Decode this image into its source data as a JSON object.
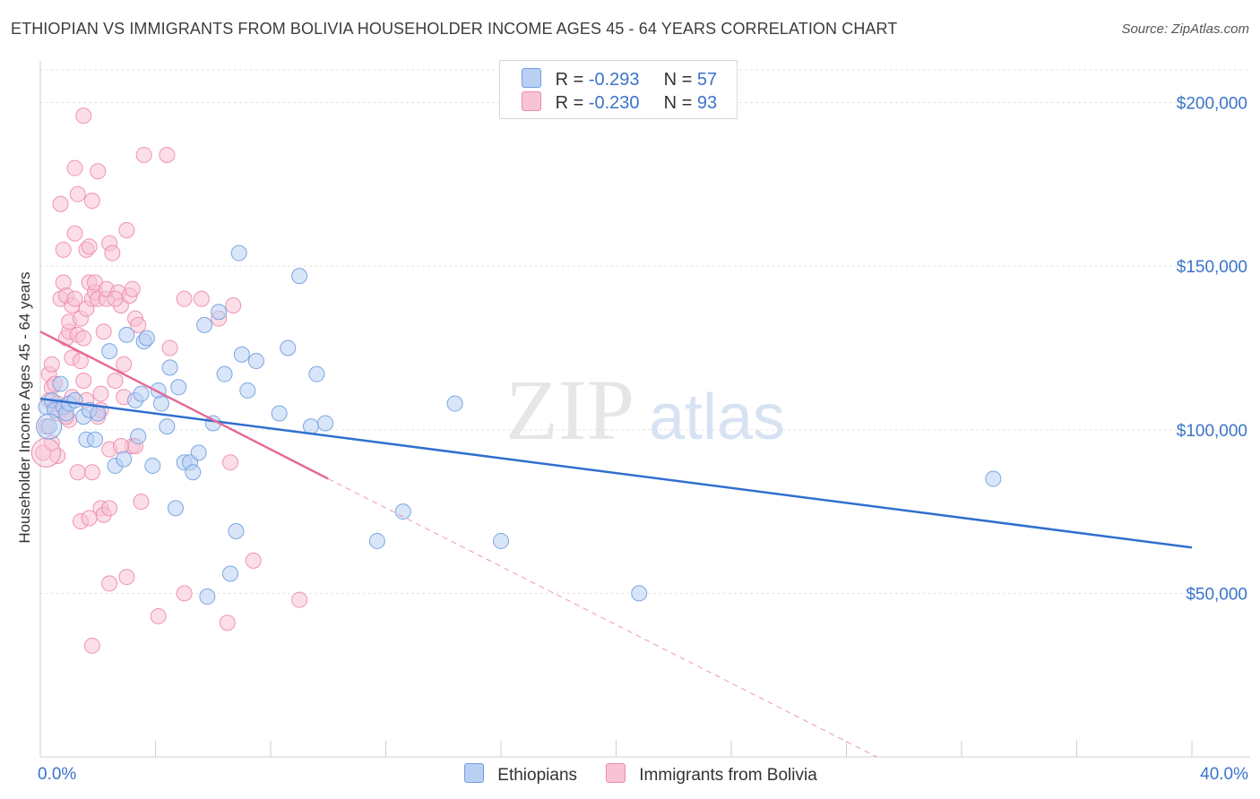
{
  "header": {
    "title": "ETHIOPIAN VS IMMIGRANTS FROM BOLIVIA HOUSEHOLDER INCOME AGES 45 - 64 YEARS CORRELATION CHART",
    "source": "Source: ZipAtlas.com"
  },
  "watermark": {
    "zip": "ZIP",
    "atlas": "atlas"
  },
  "legend": {
    "items": [
      {
        "r_label": "R =",
        "r_value": "-0.293",
        "n_label": "N =",
        "n_value": "57",
        "color": "#6f9ee0",
        "fill": "#b9d0f2"
      },
      {
        "r_label": "R =",
        "r_value": "-0.230",
        "n_label": "N =",
        "n_value": "93",
        "color": "#ee8aac",
        "fill": "#f8c3d5"
      }
    ]
  },
  "bottom_legend": {
    "items": [
      "Ethiopians",
      "Immigrants from Bolivia"
    ]
  },
  "chart_data": {
    "type": "scatter",
    "title": "ETHIOPIAN VS IMMIGRANTS FROM BOLIVIA HOUSEHOLDER INCOME AGES 45 - 64 YEARS CORRELATION CHART",
    "ylabel": "Householder Income Ages 45 - 64 years",
    "xlabel": "",
    "xlim": [
      0,
      40
    ],
    "ylim": [
      0,
      210000
    ],
    "x_tick_labels": [
      "0.0%",
      "40.0%"
    ],
    "y_ticks": [
      50000,
      100000,
      150000,
      200000
    ],
    "y_tick_labels": [
      "$50,000",
      "$100,000",
      "$150,000",
      "$200,000"
    ],
    "grid": true,
    "legend_position": "top-center",
    "series": [
      {
        "name": "Ethiopians",
        "color": "#6f9ee0",
        "fill": "#b9d0f2",
        "line_color": "#2f6fcf",
        "trend": {
          "x": [
            0,
            40
          ],
          "y": [
            109500,
            64000
          ]
        },
        "points": [
          [
            0.2,
            107000
          ],
          [
            0.4,
            109000
          ],
          [
            0.5,
            106000
          ],
          [
            0.7,
            114000
          ],
          [
            0.8,
            107000
          ],
          [
            0.9,
            105000
          ],
          [
            1.0,
            108000
          ],
          [
            1.2,
            109000
          ],
          [
            1.5,
            104000
          ],
          [
            1.7,
            106000
          ],
          [
            2.0,
            105000
          ],
          [
            1.6,
            97000
          ],
          [
            1.9,
            97000
          ],
          [
            2.4,
            124000
          ],
          [
            2.6,
            89000
          ],
          [
            2.9,
            91000
          ],
          [
            3.0,
            129000
          ],
          [
            3.3,
            109000
          ],
          [
            3.4,
            98000
          ],
          [
            3.6,
            127000
          ],
          [
            3.7,
            128000
          ],
          [
            3.9,
            89000
          ],
          [
            4.1,
            112000
          ],
          [
            4.2,
            108000
          ],
          [
            4.4,
            101000
          ],
          [
            4.5,
            119000
          ],
          [
            4.7,
            76000
          ],
          [
            4.8,
            113000
          ],
          [
            5.0,
            90000
          ],
          [
            5.2,
            90000
          ],
          [
            5.3,
            87000
          ],
          [
            5.5,
            93000
          ],
          [
            5.7,
            132000
          ],
          [
            5.8,
            49000
          ],
          [
            6.0,
            102000
          ],
          [
            6.2,
            136000
          ],
          [
            6.4,
            117000
          ],
          [
            6.6,
            56000
          ],
          [
            6.8,
            69000
          ],
          [
            7.0,
            123000
          ],
          [
            7.2,
            112000
          ],
          [
            7.5,
            121000
          ],
          [
            8.3,
            105000
          ],
          [
            8.6,
            125000
          ],
          [
            9.0,
            147000
          ],
          [
            9.4,
            101000
          ],
          [
            9.6,
            117000
          ],
          [
            9.9,
            102000
          ],
          [
            3.5,
            111000
          ],
          [
            6.9,
            154000
          ],
          [
            11.7,
            66000
          ],
          [
            12.6,
            75000
          ],
          [
            14.4,
            108000
          ],
          [
            16.0,
            66000
          ],
          [
            20.8,
            50000
          ],
          [
            33.1,
            85000
          ],
          [
            0.3,
            101000
          ]
        ]
      },
      {
        "name": "Immigrants from Bolivia",
        "color": "#ee8aac",
        "fill": "#f8c3d5",
        "line_color": "#e46b95",
        "trend": {
          "x": [
            0,
            10
          ],
          "y": [
            130000,
            85000
          ]
        },
        "trend_extension": {
          "x": [
            10,
            29.5
          ],
          "y": [
            85000,
            -2000
          ]
        },
        "points": [
          [
            0.1,
            93000
          ],
          [
            0.2,
            101000
          ],
          [
            0.3,
            109000
          ],
          [
            0.3,
            117000
          ],
          [
            0.4,
            120000
          ],
          [
            0.4,
            113000
          ],
          [
            0.5,
            107000
          ],
          [
            0.5,
            114000
          ],
          [
            0.6,
            92000
          ],
          [
            0.6,
            108000
          ],
          [
            0.7,
            169000
          ],
          [
            0.7,
            140000
          ],
          [
            0.8,
            155000
          ],
          [
            0.8,
            145000
          ],
          [
            0.9,
            128000
          ],
          [
            0.9,
            141000
          ],
          [
            1.0,
            130000
          ],
          [
            1.0,
            133000
          ],
          [
            1.1,
            138000
          ],
          [
            1.1,
            122000
          ],
          [
            1.2,
            180000
          ],
          [
            1.2,
            160000
          ],
          [
            1.3,
            172000
          ],
          [
            1.3,
            129000
          ],
          [
            1.4,
            134000
          ],
          [
            1.4,
            121000
          ],
          [
            1.5,
            115000
          ],
          [
            1.5,
            128000
          ],
          [
            1.6,
            137000
          ],
          [
            1.6,
            155000
          ],
          [
            1.7,
            156000
          ],
          [
            1.7,
            145000
          ],
          [
            1.8,
            140000
          ],
          [
            1.8,
            170000
          ],
          [
            1.9,
            142000
          ],
          [
            1.9,
            145000
          ],
          [
            2.0,
            179000
          ],
          [
            2.0,
            140000
          ],
          [
            2.1,
            111000
          ],
          [
            2.1,
            106000
          ],
          [
            2.2,
            130000
          ],
          [
            2.3,
            140000
          ],
          [
            2.3,
            143000
          ],
          [
            2.4,
            157000
          ],
          [
            2.5,
            154000
          ],
          [
            2.6,
            115000
          ],
          [
            2.7,
            142000
          ],
          [
            2.8,
            138000
          ],
          [
            2.9,
            120000
          ],
          [
            3.0,
            161000
          ],
          [
            3.1,
            141000
          ],
          [
            3.2,
            143000
          ],
          [
            3.3,
            134000
          ],
          [
            1.5,
            196000
          ],
          [
            3.6,
            184000
          ],
          [
            4.4,
            184000
          ],
          [
            1.3,
            87000
          ],
          [
            1.8,
            87000
          ],
          [
            2.0,
            104000
          ],
          [
            2.4,
            94000
          ],
          [
            3.2,
            95000
          ],
          [
            3.5,
            78000
          ],
          [
            1.4,
            72000
          ],
          [
            1.7,
            73000
          ],
          [
            2.1,
            76000
          ],
          [
            2.2,
            74000
          ],
          [
            2.4,
            76000
          ],
          [
            3.0,
            55000
          ],
          [
            2.4,
            53000
          ],
          [
            4.1,
            43000
          ],
          [
            5.0,
            50000
          ],
          [
            6.5,
            41000
          ],
          [
            1.8,
            34000
          ],
          [
            4.5,
            125000
          ],
          [
            5.0,
            140000
          ],
          [
            5.6,
            140000
          ],
          [
            6.2,
            134000
          ],
          [
            6.7,
            138000
          ],
          [
            6.6,
            90000
          ],
          [
            7.4,
            60000
          ],
          [
            9.0,
            48000
          ],
          [
            3.3,
            95000
          ],
          [
            2.8,
            95000
          ],
          [
            0.6,
            105000
          ],
          [
            1.0,
            103000
          ],
          [
            0.4,
            96000
          ],
          [
            1.2,
            140000
          ],
          [
            2.6,
            140000
          ],
          [
            3.4,
            132000
          ],
          [
            0.9,
            104000
          ],
          [
            2.9,
            110000
          ],
          [
            1.6,
            109000
          ],
          [
            1.1,
            110000
          ]
        ]
      }
    ]
  }
}
